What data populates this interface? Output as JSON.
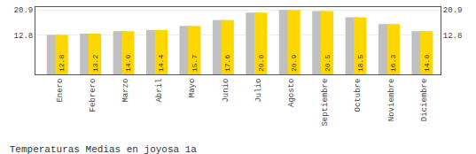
{
  "chart_data": {
    "type": "bar",
    "title": "Temperaturas Medias en joyosa 1a",
    "categories": [
      "Enero",
      "Febrero",
      "Marzo",
      "Abril",
      "Mayo",
      "Junio",
      "Julio",
      "Agosto",
      "Septiembre",
      "Octubre",
      "Noviembre",
      "Diciembre"
    ],
    "series": [
      {
        "color": "#C0C0C0",
        "values": [
          12.8,
          13.2,
          14.0,
          14.4,
          15.7,
          17.6,
          20.0,
          20.9,
          20.5,
          18.5,
          16.3,
          14.0
        ]
      },
      {
        "color": "#FFD700",
        "values": [
          12.8,
          13.2,
          14.0,
          14.4,
          15.7,
          17.6,
          20.0,
          20.9,
          20.5,
          18.5,
          16.3,
          14.0
        ],
        "value_labels": [
          "12.8",
          "13.2",
          "14.0",
          "14.4",
          "15.7",
          "17.6",
          "20.0",
          "20.9",
          "20.5",
          "18.5",
          "16.3",
          "14.0"
        ]
      }
    ],
    "ylim": [
      0,
      21.8
    ],
    "yticks": [
      12.8,
      20.9
    ],
    "y2lim": [
      0,
      21.8
    ],
    "y2ticks": [
      12.8,
      20.9
    ],
    "grid": true,
    "data_labels": true
  }
}
